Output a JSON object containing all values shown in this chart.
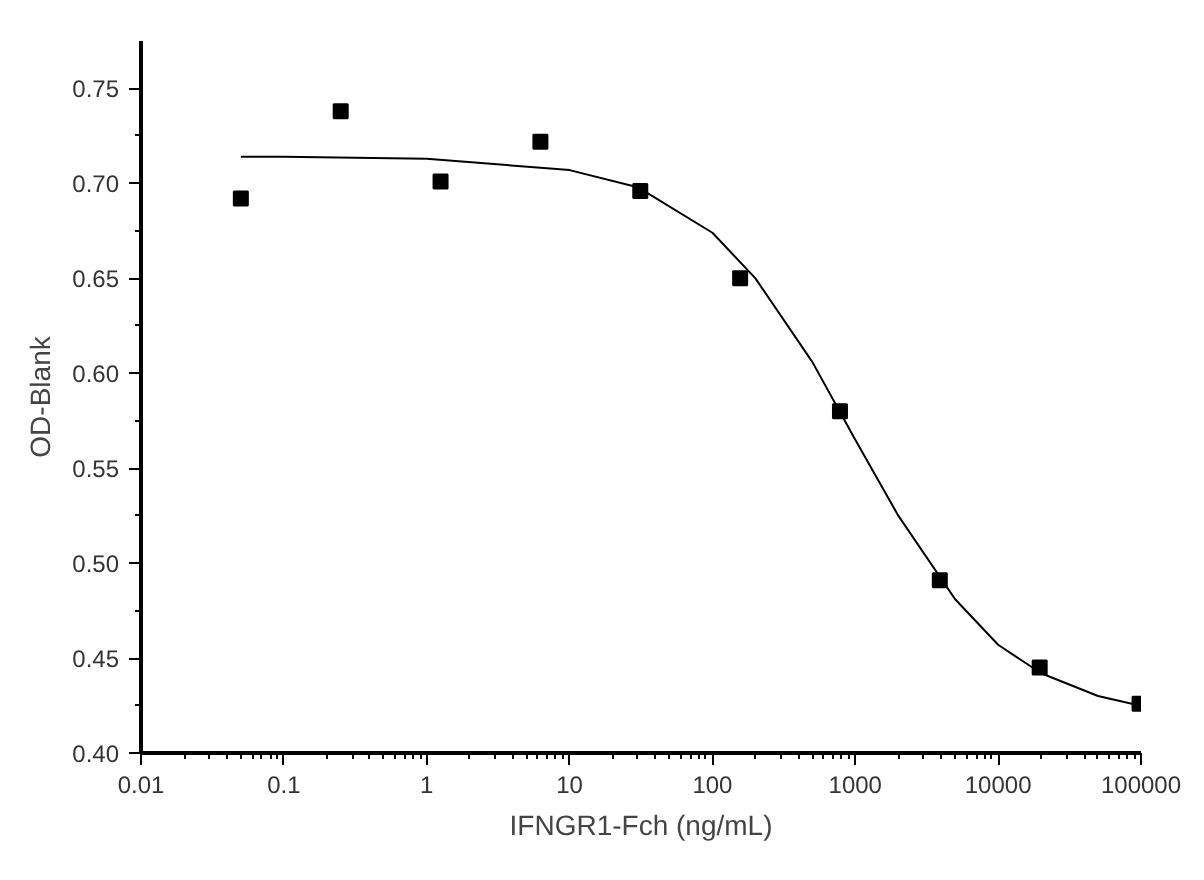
{
  "chart_data": {
    "type": "scatter",
    "xlabel": "IFNGR1-Fch (ng/mL)",
    "ylabel": "OD-Blank",
    "log": "x",
    "grid": false,
    "xlim": [
      0.01,
      100000
    ],
    "xticks": [
      0.01,
      0.1,
      1,
      10,
      100,
      1000,
      10000,
      100000
    ],
    "ylim": [
      0.4,
      0.775
    ],
    "yticks": [
      {
        "value": 0.4,
        "label": "0.40"
      },
      {
        "value": 0.45,
        "label": "0.45"
      },
      {
        "value": 0.5,
        "label": "0.50"
      },
      {
        "value": 0.55,
        "label": "0.55"
      },
      {
        "value": 0.6,
        "label": "0.60"
      },
      {
        "value": 0.65,
        "label": "0.65"
      },
      {
        "value": 0.7,
        "label": "0.70"
      },
      {
        "value": 0.75,
        "label": "0.75"
      }
    ],
    "series": [
      {
        "marker": "square",
        "color": "#000000",
        "x": [
          0.05,
          0.25,
          1.25,
          6.25,
          31.25,
          156.25,
          781.25,
          3906.25,
          19531.25,
          97656.25
        ],
        "values": [
          0.692,
          0.738,
          0.701,
          0.722,
          0.696,
          0.65,
          0.58,
          0.491,
          0.445,
          0.426
        ]
      },
      {
        "type": "line",
        "color": "#000000",
        "line_style": "solid",
        "x": [
          0.05,
          0.1,
          1,
          10,
          30,
          100,
          200,
          500,
          1000,
          2000,
          5000,
          10000,
          20000,
          50000,
          97656.25
        ],
        "values": [
          0.714,
          0.714,
          0.713,
          0.707,
          0.698,
          0.674,
          0.65,
          0.606,
          0.565,
          0.525,
          0.481,
          0.457,
          0.442,
          0.43,
          0.425
        ]
      }
    ]
  }
}
